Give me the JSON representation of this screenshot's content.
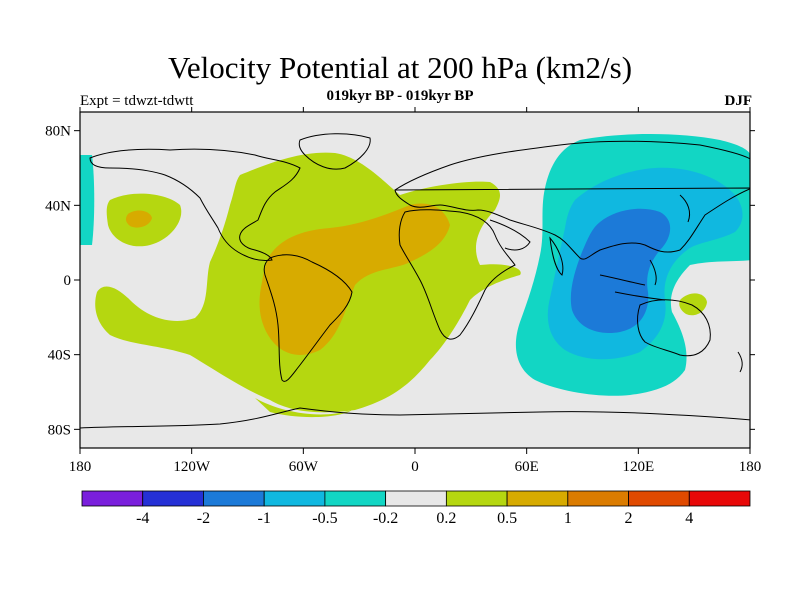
{
  "title": "Velocity Potential at 200 hPa (km2/s)",
  "subtitle": "019kyr BP - 019kyr BP",
  "left_label": "Expt = tdwzt-tdwtt",
  "right_label": "DJF",
  "map": {
    "lat_ticks": [
      "80N",
      "40N",
      "0",
      "40S",
      "80S"
    ],
    "lon_ticks": [
      "180",
      "120W",
      "60W",
      "0",
      "60E",
      "120E",
      "180"
    ]
  },
  "colorbar": {
    "colors": [
      "#7a1fdc",
      "#2530d6",
      "#1c7ad8",
      "#10b8e0",
      "#12d6c4",
      "#e8e8e8",
      "#b5d710",
      "#d7ab00",
      "#db7c00",
      "#e04a00",
      "#e80808"
    ],
    "labels": [
      "-4",
      "-2",
      "-1",
      "-0.5",
      "-0.2",
      "0.2",
      "0.5",
      "1",
      "2",
      "4"
    ]
  },
  "colors": {
    "background": "#e8e8e8",
    "positive_weak": "#b5d710",
    "positive_mid": "#d7ab00",
    "negative_weak": "#12d6c4",
    "negative_mid": "#10b8e0",
    "negative_strong": "#1c7ad8"
  }
}
